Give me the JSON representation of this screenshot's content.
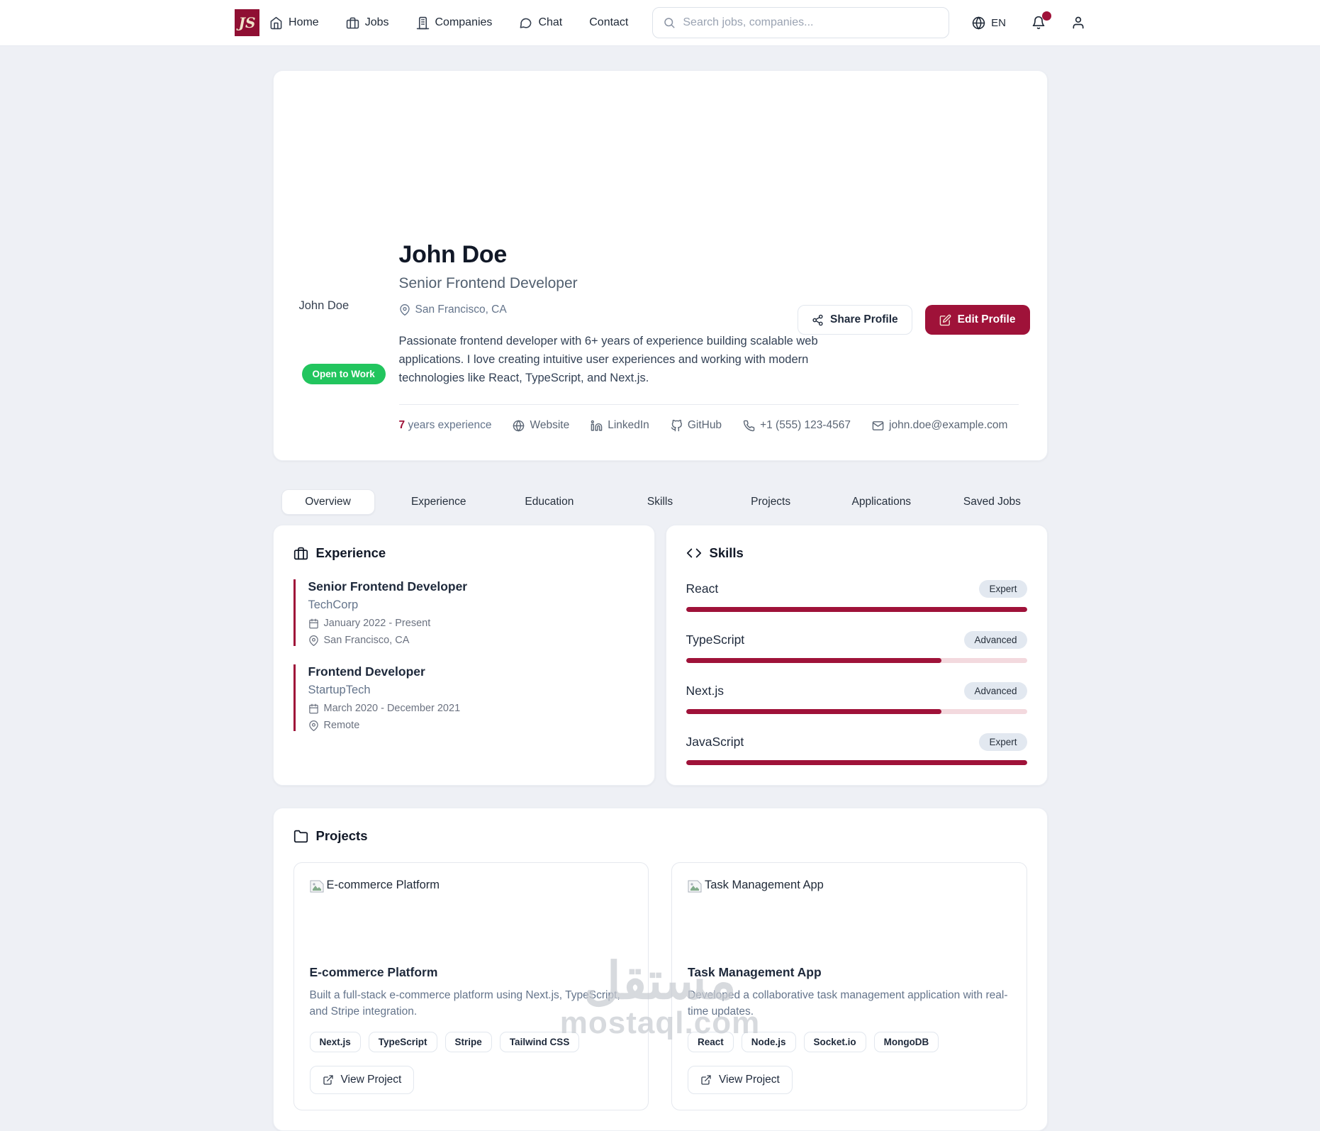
{
  "nav": {
    "logo_text": "JS",
    "items": [
      {
        "label": "Home"
      },
      {
        "label": "Jobs"
      },
      {
        "label": "Companies"
      },
      {
        "label": "Chat"
      },
      {
        "label": "Contact"
      }
    ],
    "search_placeholder": "Search jobs, companies...",
    "language": "EN"
  },
  "profile": {
    "name": "John Doe",
    "avatar_alt": "John Doe",
    "title": "Senior Frontend Developer",
    "location": "San Francisco, CA",
    "bio": "Passionate frontend developer with 6+ years of experience building scalable web applications. I love creating intuitive user experiences and working with modern technologies like React, TypeScript, and Next.js.",
    "open_to_work": "Open to Work",
    "share_label": "Share Profile",
    "edit_label": "Edit Profile",
    "years_value": "7",
    "years_suffix": "years experience",
    "links": {
      "website": "Website",
      "linkedin": "LinkedIn",
      "github": "GitHub",
      "phone": "+1 (555) 123-4567",
      "email": "john.doe@example.com"
    }
  },
  "tabs": [
    {
      "label": "Overview",
      "active": true
    },
    {
      "label": "Experience",
      "active": false
    },
    {
      "label": "Education",
      "active": false
    },
    {
      "label": "Skills",
      "active": false
    },
    {
      "label": "Projects",
      "active": false
    },
    {
      "label": "Applications",
      "active": false
    },
    {
      "label": "Saved Jobs",
      "active": false
    }
  ],
  "experience": {
    "heading": "Experience",
    "entries": [
      {
        "title": "Senior Frontend Developer",
        "company": "TechCorp",
        "period": "January 2022 - Present",
        "location": "San Francisco, CA"
      },
      {
        "title": "Frontend Developer",
        "company": "StartupTech",
        "period": "March 2020 - December 2021",
        "location": "Remote"
      }
    ]
  },
  "skills": {
    "heading": "Skills",
    "items": [
      {
        "name": "React",
        "level": "Expert",
        "percent": 100
      },
      {
        "name": "TypeScript",
        "level": "Advanced",
        "percent": 75
      },
      {
        "name": "Next.js",
        "level": "Advanced",
        "percent": 75
      },
      {
        "name": "JavaScript",
        "level": "Expert",
        "percent": 100
      }
    ]
  },
  "projects": {
    "heading": "Projects",
    "cards": [
      {
        "image_alt": "E-commerce Platform",
        "title": "E-commerce Platform",
        "description": "Built a full-stack e-commerce platform using Next.js, TypeScript, and Stripe integration.",
        "tags": [
          "Next.js",
          "TypeScript",
          "Stripe",
          "Tailwind CSS"
        ],
        "view_label": "View Project"
      },
      {
        "image_alt": "Task Management App",
        "title": "Task Management App",
        "description": "Developed a collaborative task management application with real-time updates.",
        "tags": [
          "React",
          "Node.js",
          "Socket.io",
          "MongoDB"
        ],
        "view_label": "View Project"
      }
    ]
  },
  "watermark": {
    "arabic": "مستقل",
    "domain": "mostaql.com"
  },
  "colors": {
    "accent": "#9f1239",
    "open_to_work_green": "#22c55e",
    "page_bg": "#eef0f5",
    "notification_dot": "#9f1239"
  }
}
